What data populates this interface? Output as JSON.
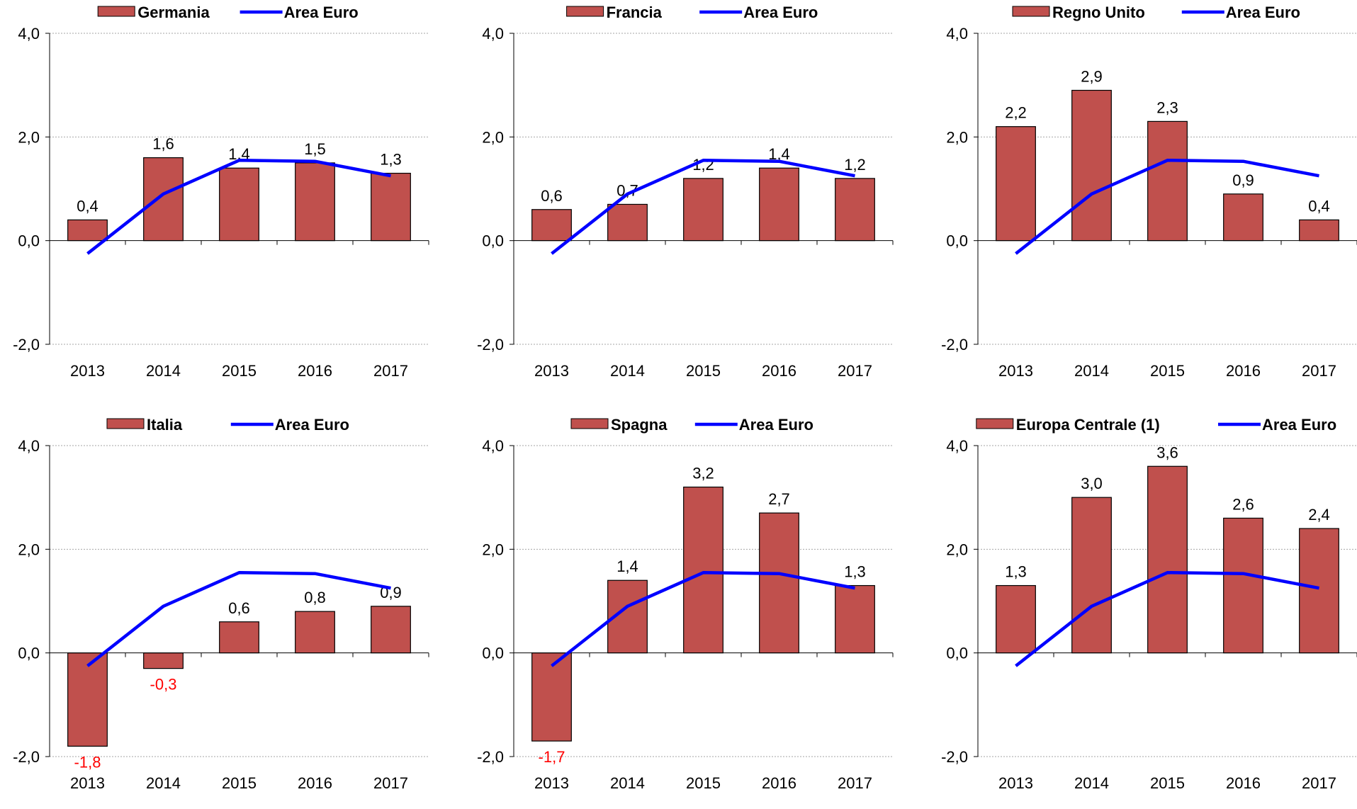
{
  "colors": {
    "bar": "#C0504D",
    "bar_stroke": "#000000",
    "line": "#0000FF",
    "negative_label": "#FF0000",
    "grid": "#A6A6A6"
  },
  "chart_data": [
    {
      "type": "bar",
      "categories": [
        "2013",
        "2014",
        "2015",
        "2016",
        "2017"
      ],
      "series": [
        {
          "name": "Germania",
          "type": "bar",
          "values": [
            0.4,
            1.6,
            1.4,
            1.5,
            1.3
          ],
          "labels": [
            "0,4",
            "1,6",
            "1,4",
            "1,5",
            "1,3"
          ]
        },
        {
          "name": "Area Euro",
          "type": "line",
          "values": [
            -0.25,
            0.9,
            1.55,
            1.53,
            1.25
          ]
        }
      ],
      "ylim": [
        -2,
        4
      ],
      "yticks": [
        "-2,0",
        "0,0",
        "2,0",
        "4,0"
      ],
      "grid": true,
      "legend": "top"
    },
    {
      "type": "bar",
      "categories": [
        "2013",
        "2014",
        "2015",
        "2016",
        "2017"
      ],
      "series": [
        {
          "name": "Francia",
          "type": "bar",
          "values": [
            0.6,
            0.7,
            1.2,
            1.4,
            1.2
          ],
          "labels": [
            "0,6",
            "0,7",
            "1,2",
            "1,4",
            "1,2"
          ]
        },
        {
          "name": "Area Euro",
          "type": "line",
          "values": [
            -0.25,
            0.9,
            1.55,
            1.53,
            1.25
          ]
        }
      ],
      "ylim": [
        -2,
        4
      ],
      "yticks": [
        "-2,0",
        "0,0",
        "2,0",
        "4,0"
      ],
      "grid": true,
      "legend": "top"
    },
    {
      "type": "bar",
      "categories": [
        "2013",
        "2014",
        "2015",
        "2016",
        "2017"
      ],
      "series": [
        {
          "name": "Regno Unito",
          "type": "bar",
          "values": [
            2.2,
            2.9,
            2.3,
            0.9,
            0.4
          ],
          "labels": [
            "2,2",
            "2,9",
            "2,3",
            "0,9",
            "0,4"
          ]
        },
        {
          "name": "Area Euro",
          "type": "line",
          "values": [
            -0.25,
            0.9,
            1.55,
            1.53,
            1.25
          ]
        }
      ],
      "ylim": [
        -2,
        4
      ],
      "yticks": [
        "-2,0",
        "0,0",
        "2,0",
        "4,0"
      ],
      "grid": true,
      "legend": "top"
    },
    {
      "type": "bar",
      "categories": [
        "2013",
        "2014",
        "2015",
        "2016",
        "2017"
      ],
      "series": [
        {
          "name": "Italia",
          "type": "bar",
          "values": [
            -1.8,
            -0.3,
            0.6,
            0.8,
            0.9
          ],
          "labels": [
            "-1,8",
            "-0,3",
            "0,6",
            "0,8",
            "0,9"
          ]
        },
        {
          "name": "Area Euro",
          "type": "line",
          "values": [
            -0.25,
            0.9,
            1.55,
            1.53,
            1.25
          ]
        }
      ],
      "ylim": [
        -2,
        4
      ],
      "yticks": [
        "-2,0",
        "0,0",
        "2,0",
        "4,0"
      ],
      "grid": true,
      "legend": "top"
    },
    {
      "type": "bar",
      "categories": [
        "2013",
        "2014",
        "2015",
        "2016",
        "2017"
      ],
      "series": [
        {
          "name": "Spagna",
          "type": "bar",
          "values": [
            -1.7,
            1.4,
            3.2,
            2.7,
            1.3
          ],
          "labels": [
            "-1,7",
            "1,4",
            "3,2",
            "2,7",
            "1,3"
          ]
        },
        {
          "name": "Area Euro",
          "type": "line",
          "values": [
            -0.25,
            0.9,
            1.55,
            1.53,
            1.25
          ]
        }
      ],
      "ylim": [
        -2,
        4
      ],
      "yticks": [
        "-2,0",
        "0,0",
        "2,0",
        "4,0"
      ],
      "grid": true,
      "legend": "top"
    },
    {
      "type": "bar",
      "categories": [
        "2013",
        "2014",
        "2015",
        "2016",
        "2017"
      ],
      "series": [
        {
          "name": "Europa Centrale (1)",
          "type": "bar",
          "values": [
            1.3,
            3.0,
            3.6,
            2.6,
            2.4
          ],
          "labels": [
            "1,3",
            "3,0",
            "3,6",
            "2,6",
            "2,4"
          ]
        },
        {
          "name": "Area Euro",
          "type": "line",
          "values": [
            -0.25,
            0.9,
            1.55,
            1.53,
            1.25
          ]
        }
      ],
      "ylim": [
        -2,
        4
      ],
      "yticks": [
        "-2,0",
        "0,0",
        "2,0",
        "4,0"
      ],
      "grid": true,
      "legend": "top"
    }
  ]
}
